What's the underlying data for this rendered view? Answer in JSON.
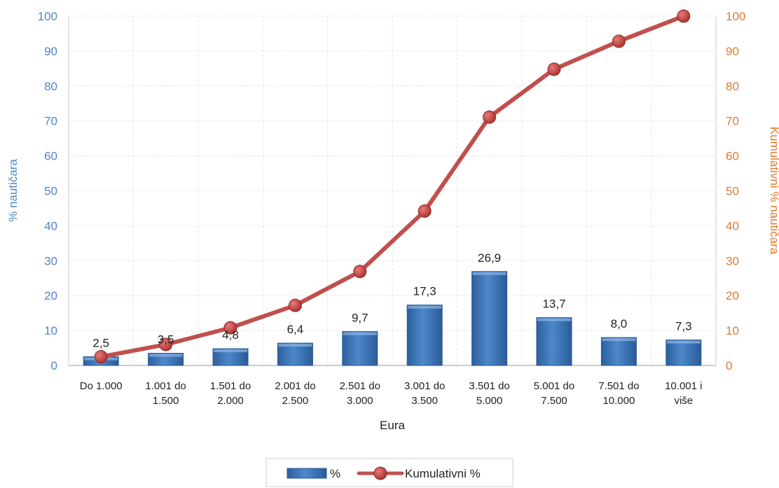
{
  "chart_data": {
    "type": "bar",
    "categories": [
      [
        "Do 1.000"
      ],
      [
        "1.001 do",
        "1.500"
      ],
      [
        "1.501 do",
        "2.000"
      ],
      [
        "2.001 do",
        "2.500"
      ],
      [
        "2.501 do",
        "3.000"
      ],
      [
        "3.001 do",
        "3.500"
      ],
      [
        "3.501 do",
        "5.000"
      ],
      [
        "5.001 do",
        "7.500"
      ],
      [
        "7.501 do",
        "10.000"
      ],
      [
        "10.001 i",
        "više"
      ]
    ],
    "series": [
      {
        "name": "%",
        "type": "bar",
        "axis": "left",
        "values": [
          2.5,
          3.5,
          4.8,
          6.4,
          9.7,
          17.3,
          26.9,
          13.7,
          8.0,
          7.3
        ],
        "labels": [
          "2,5",
          "3,5",
          "4,8",
          "6,4",
          "9,7",
          "17,3",
          "26,9",
          "13,7",
          "8,0",
          "7,3"
        ],
        "color": "#3f77bd"
      },
      {
        "name": "Kumulativni %",
        "type": "line",
        "axis": "right",
        "values": [
          2.5,
          6.0,
          10.8,
          17.2,
          26.9,
          44.2,
          71.1,
          84.8,
          92.8,
          100.0
        ],
        "color": "#c0504d"
      }
    ],
    "xlabel": "Eura",
    "ylabel": "% nautičara",
    "y2label": "Kumulativni % nautičara",
    "ylim": [
      0,
      100
    ],
    "y2lim": [
      0,
      100
    ],
    "yticks": [
      0,
      10,
      20,
      30,
      40,
      50,
      60,
      70,
      80,
      90,
      100
    ],
    "grid": true,
    "legend_position": "bottom"
  }
}
